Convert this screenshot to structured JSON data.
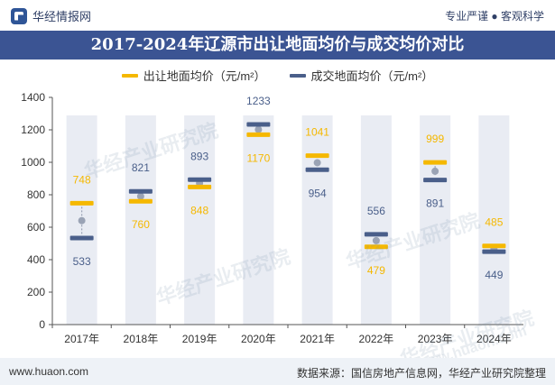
{
  "header": {
    "brand": "华经情报网",
    "tagline": "专业严谨 ● 客观科学"
  },
  "chart_data": {
    "type": "line",
    "title": "2017-2024年辽源市出让地面均价与成交均价对比",
    "xlabel": "",
    "ylabel": "",
    "categories": [
      "2017年",
      "2018年",
      "2019年",
      "2020年",
      "2021年",
      "2022年",
      "2023年",
      "2024年"
    ],
    "series": [
      {
        "name": "出让地面均价（元/m²）",
        "color": "#f5b800",
        "values": [
          748,
          760,
          848,
          1170,
          1041,
          479,
          999,
          485
        ]
      },
      {
        "name": "成交地面均价（元/m²）",
        "color": "#4a5f8a",
        "values": [
          533,
          821,
          893,
          1233,
          954,
          556,
          891,
          449
        ]
      }
    ],
    "ylim": [
      0,
      1400
    ],
    "yticks": [
      0,
      200,
      400,
      600,
      800,
      1000,
      1200,
      1400
    ],
    "grid": false,
    "legend_position": "top-center"
  },
  "footer": {
    "url": "www.huaon.com",
    "source": "数据来源：国信房地产信息网，华经产业研究院整理"
  },
  "watermark": {
    "text": "华经产业研究院",
    "url_text": "www.huaon.com"
  },
  "colors": {
    "title_bg": "#3b5493",
    "column_bg": "#e9ecf3",
    "sell_color": "#f5b800",
    "deal_color": "#4a5f8a"
  }
}
